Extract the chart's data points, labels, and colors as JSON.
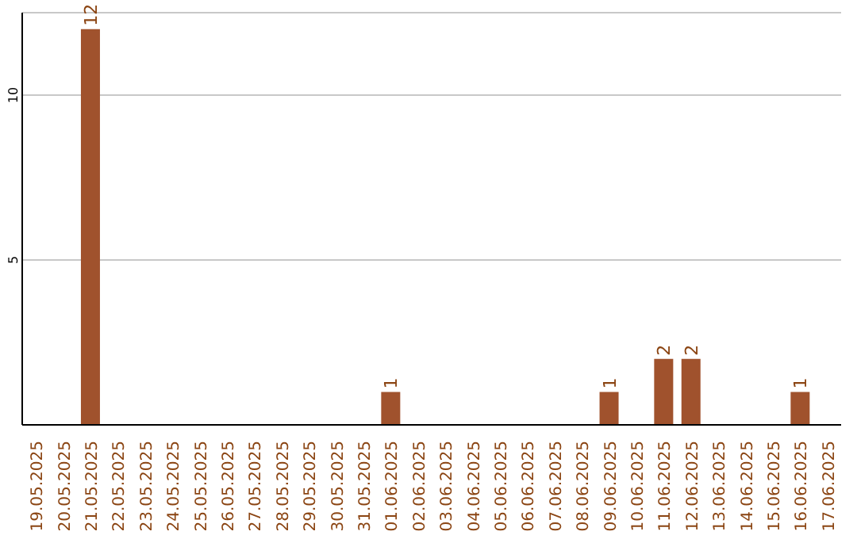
{
  "chart_data": {
    "type": "bar",
    "categories": [
      "19.05.2025",
      "20.05.2025",
      "21.05.2025",
      "22.05.2025",
      "23.05.2025",
      "24.05.2025",
      "25.05.2025",
      "26.05.2025",
      "27.05.2025",
      "28.05.2025",
      "29.05.2025",
      "30.05.2025",
      "31.05.2025",
      "01.06.2025",
      "02.06.2025",
      "03.06.2025",
      "04.06.2025",
      "05.06.2025",
      "06.06.2025",
      "07.06.2025",
      "08.06.2025",
      "09.06.2025",
      "10.06.2025",
      "11.06.2025",
      "12.06.2025",
      "13.06.2025",
      "14.06.2025",
      "15.06.2025",
      "16.06.2025",
      "17.06.2025"
    ],
    "values": [
      0,
      0,
      12,
      0,
      0,
      0,
      0,
      0,
      0,
      0,
      0,
      0,
      0,
      1,
      0,
      0,
      0,
      0,
      0,
      0,
      0,
      1,
      0,
      2,
      2,
      0,
      0,
      0,
      1,
      0
    ],
    "value_labels": [
      null,
      null,
      "12",
      null,
      null,
      null,
      null,
      null,
      null,
      null,
      null,
      null,
      null,
      "1",
      null,
      null,
      null,
      null,
      null,
      null,
      null,
      "1",
      null,
      "2",
      "2",
      null,
      null,
      null,
      "1",
      null
    ],
    "color": "#a0522d",
    "ylim": [
      0,
      12.5
    ],
    "yticks": [
      5,
      10
    ],
    "grid": "y"
  }
}
